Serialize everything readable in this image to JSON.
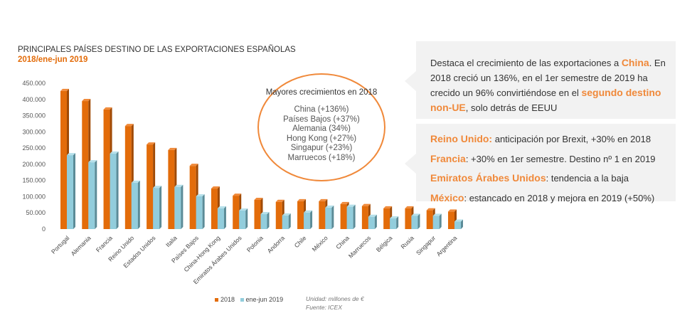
{
  "chart_data": {
    "type": "bar",
    "title": "PRINCIPALES PAÍSES DESTINO DE LAS EXPORTACIONES ESPAÑOLAS",
    "subtitle": "2018/ene-jun 2019",
    "categories": [
      "Portugal",
      "Alemania",
      "Francia",
      "Reino Unido",
      "Estados Unidos",
      "Italia",
      "Países Bajos",
      "China-Hong Kong",
      "Emiratos Árabes Unidos",
      "Polonia",
      "Andorra",
      "Chile",
      "México",
      "China",
      "Marruecos",
      "Bélgica",
      "Rusia",
      "Singapur",
      "Argentina"
    ],
    "series": [
      {
        "name": "2018",
        "color": "#e36c0a",
        "values": [
          426000,
          395000,
          369000,
          318000,
          261000,
          244000,
          195000,
          125000,
          103000,
          90000,
          84000,
          86000,
          86000,
          77000,
          71000,
          64000,
          64000,
          58000,
          54000
        ]
      },
      {
        "name": "ene-jun 2019",
        "color": "#92cddc",
        "values": [
          228000,
          206000,
          233000,
          143000,
          127000,
          130000,
          101000,
          64000,
          57000,
          46000,
          42000,
          51000,
          66000,
          69000,
          38000,
          33000,
          41000,
          41000,
          23000
        ]
      }
    ],
    "ylim": [
      0,
      450000
    ],
    "yticks": [
      "0",
      "50.000",
      "100.000",
      "150.000",
      "200.000",
      "250.000",
      "300.000",
      "350.000",
      "400.000",
      "450.000"
    ],
    "grid": false,
    "legend": "bottom",
    "unit_note": "Unidad: millones de €",
    "source_note": "Fuente: ICEX"
  },
  "callout": {
    "heading": "Mayores crecimientos en 2018",
    "items": [
      "China (+136%)",
      "Países Bajos (+37%)",
      "Alemania (34%)",
      "Hong Kong (+27%)",
      "Singapur (+23%)",
      "Marruecos (+18%)"
    ]
  },
  "box1": {
    "t1": "Destaca el crecimiento de las exportaciones a ",
    "h1": "China",
    "t2": ". En 2018 creció un 136%, en el 1er semestre de 2019 ha crecido un 96% convirtiéndose en el ",
    "h2": "segundo destino non-UE",
    "t3": ", solo detrás de EEUU"
  },
  "box2": [
    {
      "h": "Reino Unido:",
      "t": " anticipación por Brexit, +30% en 2018"
    },
    {
      "h": "Francia",
      "t": ": +30% en 1er semestre. Destino nº 1 en 2019"
    },
    {
      "h": "Emiratos Árabes Unidos",
      "t": ": tendencia a la baja"
    },
    {
      "h": "México",
      "t": ": estancado en 2018 y mejora en 2019 (+50%)"
    }
  ],
  "colors": {
    "accent": "#f0893a",
    "orange": "#e36c0a",
    "blue": "#92cddc",
    "panel": "#f2f2f2"
  }
}
